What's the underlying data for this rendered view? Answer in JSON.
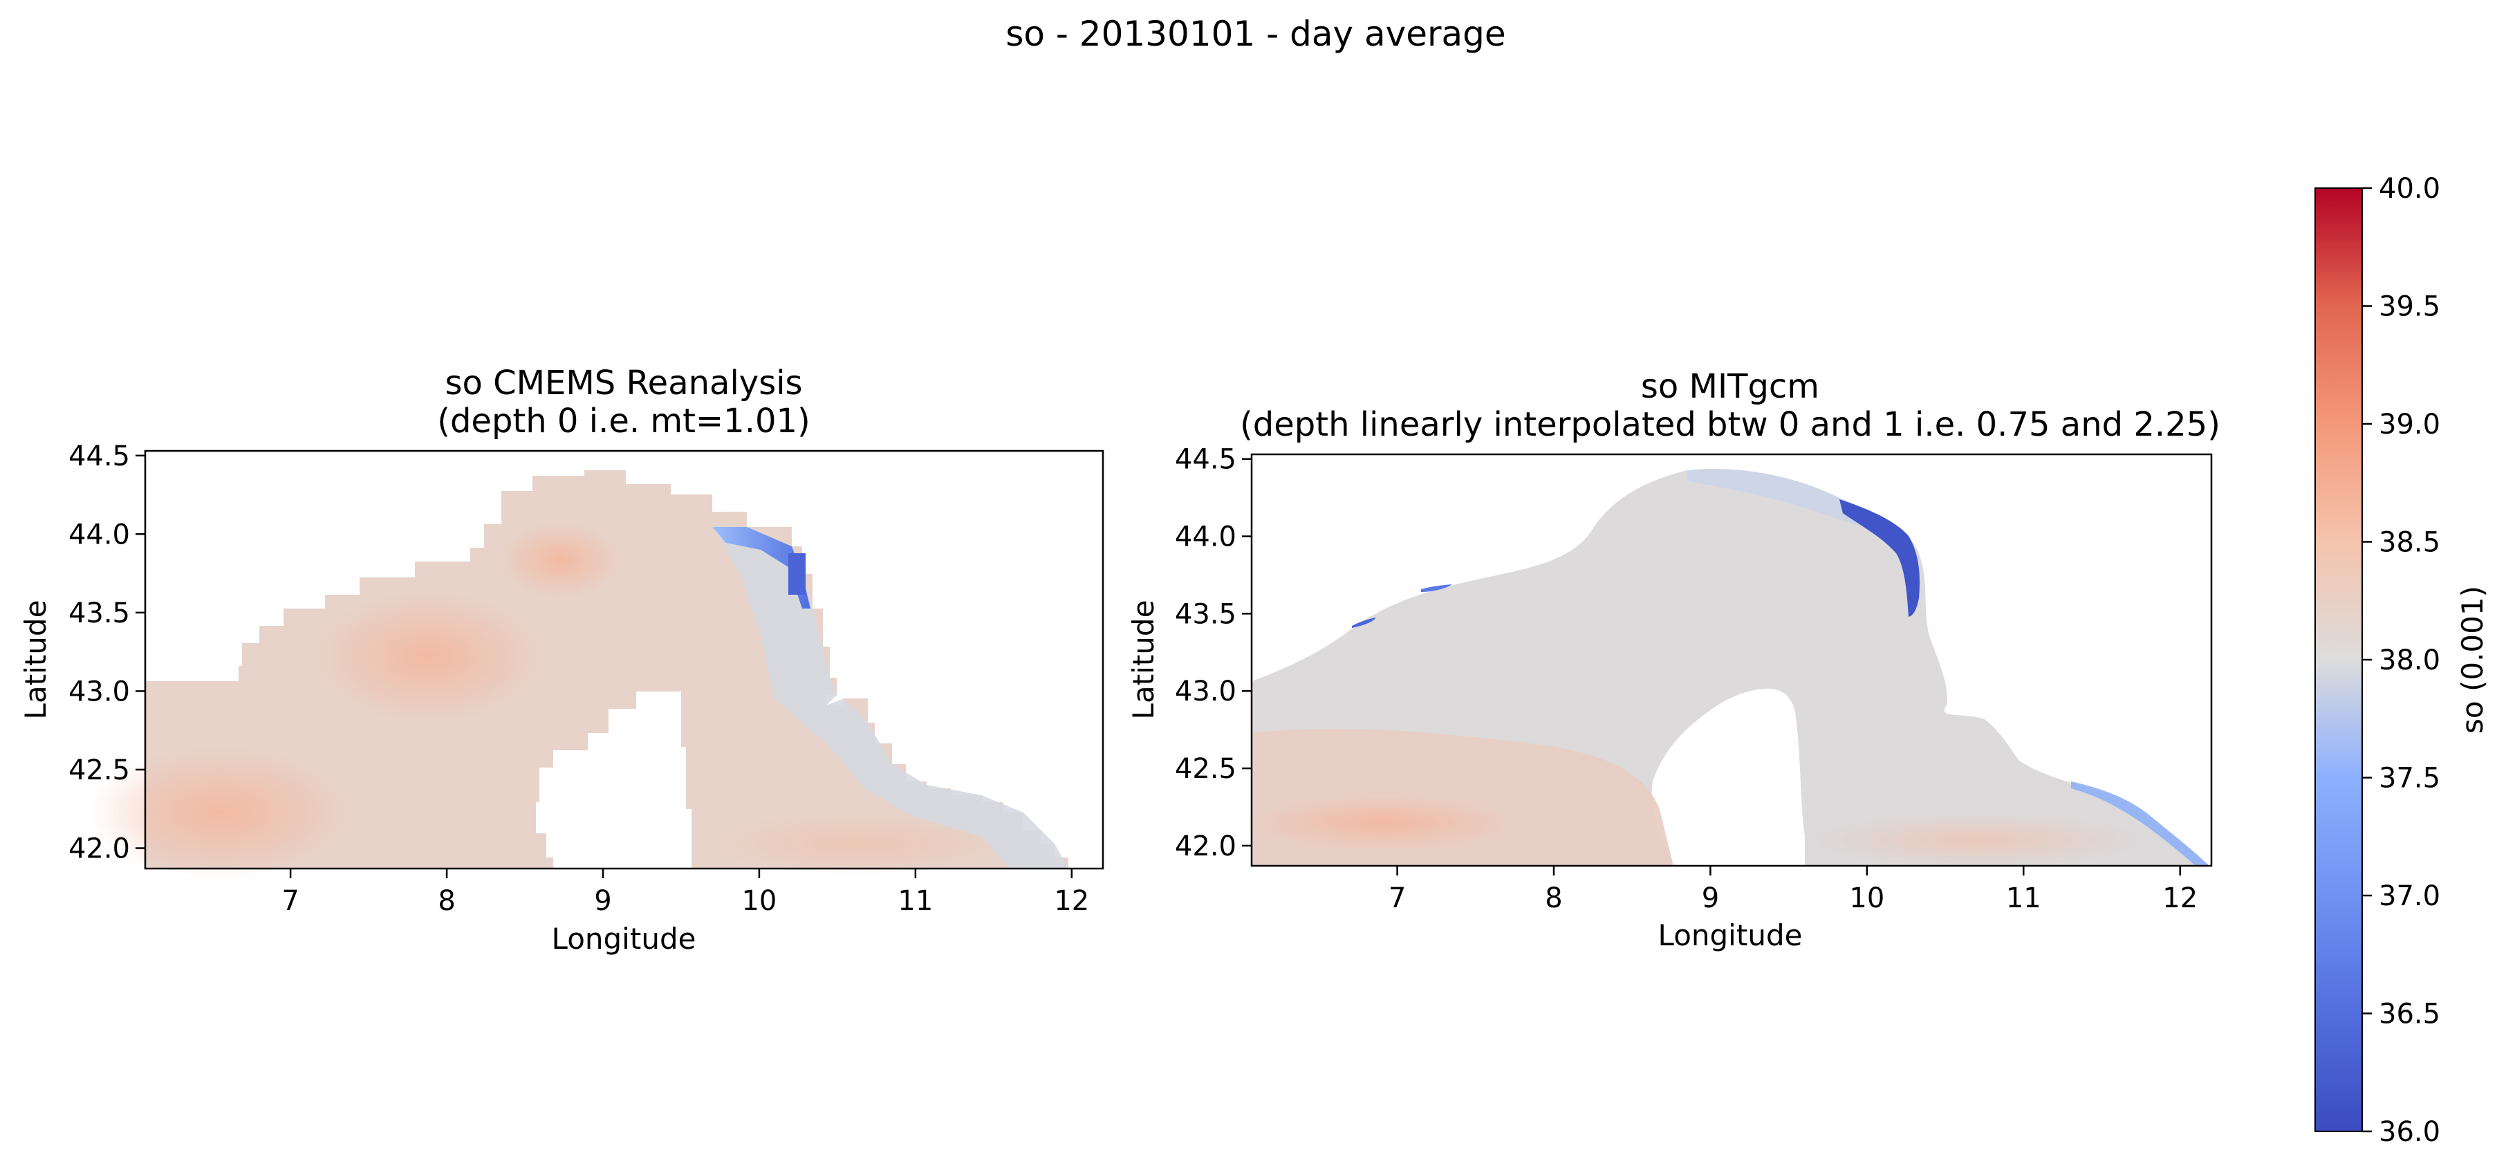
{
  "figure": {
    "suptitle": "so - 20130101 - day average"
  },
  "chart_data": [
    {
      "type": "heatmap",
      "title_line1": "so CMEMS Reanalysis",
      "title_line2": "(depth 0 i.e. mt=1.01)",
      "xlabel": "Longitude",
      "ylabel": "Latitude",
      "xlim": [
        6.07,
        12.2
      ],
      "ylim": [
        41.87,
        44.53
      ],
      "xticks": [
        "7",
        "8",
        "9",
        "10",
        "11",
        "12"
      ],
      "yticks": [
        "42.0",
        "42.5",
        "43.0",
        "43.5",
        "44.0",
        "44.5"
      ],
      "field_summary": {
        "west_offshore": 38.4,
        "south_offshore": 38.35,
        "ligurian_center": 38.45,
        "eastern_coast": 37.95,
        "north_east_fresh_tongue": 36.8
      }
    },
    {
      "type": "heatmap",
      "title_line1": "so MITgcm",
      "title_line2": "(depth linearly interpolated btw 0 and 1 i.e. 0.75 and 2.25)",
      "xlabel": "Longitude",
      "ylabel": "Latitude",
      "xlim": [
        6.07,
        12.2
      ],
      "ylim": [
        41.87,
        44.53
      ],
      "xticks": [
        "7",
        "8",
        "9",
        "10",
        "11",
        "12"
      ],
      "yticks": [
        "42.0",
        "42.5",
        "43.0",
        "43.5",
        "44.0",
        "44.5"
      ],
      "field_summary": {
        "west_offshore": 38.15,
        "south_offshore": 38.3,
        "ligurian_center": 38.05,
        "eastern_coast": 37.85,
        "north_east_fresh_tongue": 36.2
      }
    }
  ],
  "colorbar": {
    "label": "so (0.001)",
    "colormap": "coolwarm",
    "vmin": 36.0,
    "vmax": 40.0,
    "ticks": [
      "36.0",
      "36.5",
      "37.0",
      "37.5",
      "38.0",
      "38.5",
      "39.0",
      "39.5",
      "40.0"
    ],
    "colors": {
      "low": "#3b4cc0",
      "mid": "#dddddd",
      "high": "#b40426"
    }
  }
}
